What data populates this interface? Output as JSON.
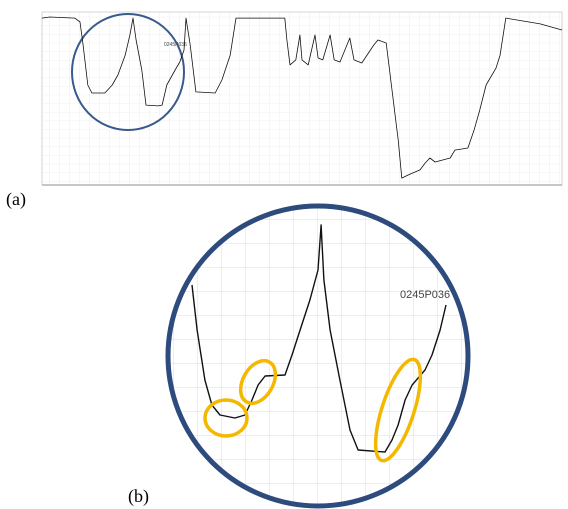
{
  "chart_data": [
    {
      "type": "line",
      "label": "(a)",
      "annotation": "0245P036",
      "color": "#111111",
      "xlim": [
        0,
        100
      ],
      "ylim": [
        0,
        100
      ],
      "x": [
        0,
        1.5,
        6.3,
        7.3,
        7.9,
        8.8,
        9.6,
        12.1,
        13.5,
        14.6,
        16.0,
        16.9,
        17.5,
        18.1,
        19.2,
        20.0,
        22.3,
        23.1,
        24.0,
        25.6,
        26.5,
        27.3,
        27.7,
        28.5,
        29.6,
        33.3,
        34.6,
        36.2,
        37.3,
        46.7,
        47.1,
        47.7,
        48.8,
        49.6,
        50.0,
        51.2,
        52.5,
        53.1,
        54.0,
        55.4,
        56.2,
        57.3,
        59.2,
        60.0,
        61.5,
        63.8,
        64.6,
        66.2,
        67.3,
        68.5,
        69.2,
        70.4,
        72.7,
        73.7,
        74.6,
        75.6,
        78.5,
        79.4,
        81.9,
        83.1,
        84.2,
        85.4,
        87.3,
        88.1,
        89.2,
        95.8,
        100
      ],
      "values": [
        96.5,
        97.1,
        96.5,
        94.2,
        80.9,
        57.8,
        53.2,
        53.2,
        57.8,
        63.6,
        75.1,
        86.7,
        96.5,
        83.8,
        66.5,
        46.2,
        45.7,
        46.2,
        57.8,
        66.5,
        71.1,
        78.0,
        96.5,
        80.9,
        53.8,
        53.2,
        60.7,
        75.1,
        96.5,
        96.5,
        83.8,
        69.4,
        72.3,
        86.7,
        72.3,
        69.4,
        86.7,
        73.4,
        72.3,
        86.7,
        72.3,
        71.1,
        85.0,
        72.3,
        70.5,
        80.9,
        83.8,
        82.1,
        54.9,
        26.0,
        4.0,
        5.8,
        8.7,
        12.7,
        15.6,
        13.3,
        15.6,
        20.2,
        21.4,
        31.8,
        43.4,
        57.8,
        67.6,
        75.1,
        96.5,
        93.1,
        89.6
      ]
    },
    {
      "type": "line",
      "label": "(b)",
      "annotation": "0245P036",
      "color": "#111111",
      "xlim": [
        0,
        100
      ],
      "ylim": [
        0,
        100
      ],
      "x": [
        4.3,
        6.1,
        8.9,
        11.4,
        14.3,
        19.6,
        23.2,
        25.7,
        27.9,
        30.4,
        37.5,
        40.0,
        42.9,
        46.4,
        49.3,
        50.4,
        51.4,
        53.6,
        57.1,
        60.7,
        63.6,
        73.2,
        75.7,
        77.9,
        80.4,
        82.9,
        87.5,
        90.0,
        92.9,
        95.0
      ],
      "values": [
        74.0,
        56.0,
        36.0,
        26.0,
        22.0,
        20.8,
        22.0,
        28.0,
        34.0,
        37.6,
        38.0,
        46.0,
        56.0,
        68.0,
        80.0,
        98.0,
        76.0,
        56.0,
        36.0,
        16.0,
        8.0,
        7.2,
        12.0,
        18.0,
        28.0,
        34.0,
        40.0,
        46.0,
        56.0,
        66.0
      ]
    }
  ]
}
